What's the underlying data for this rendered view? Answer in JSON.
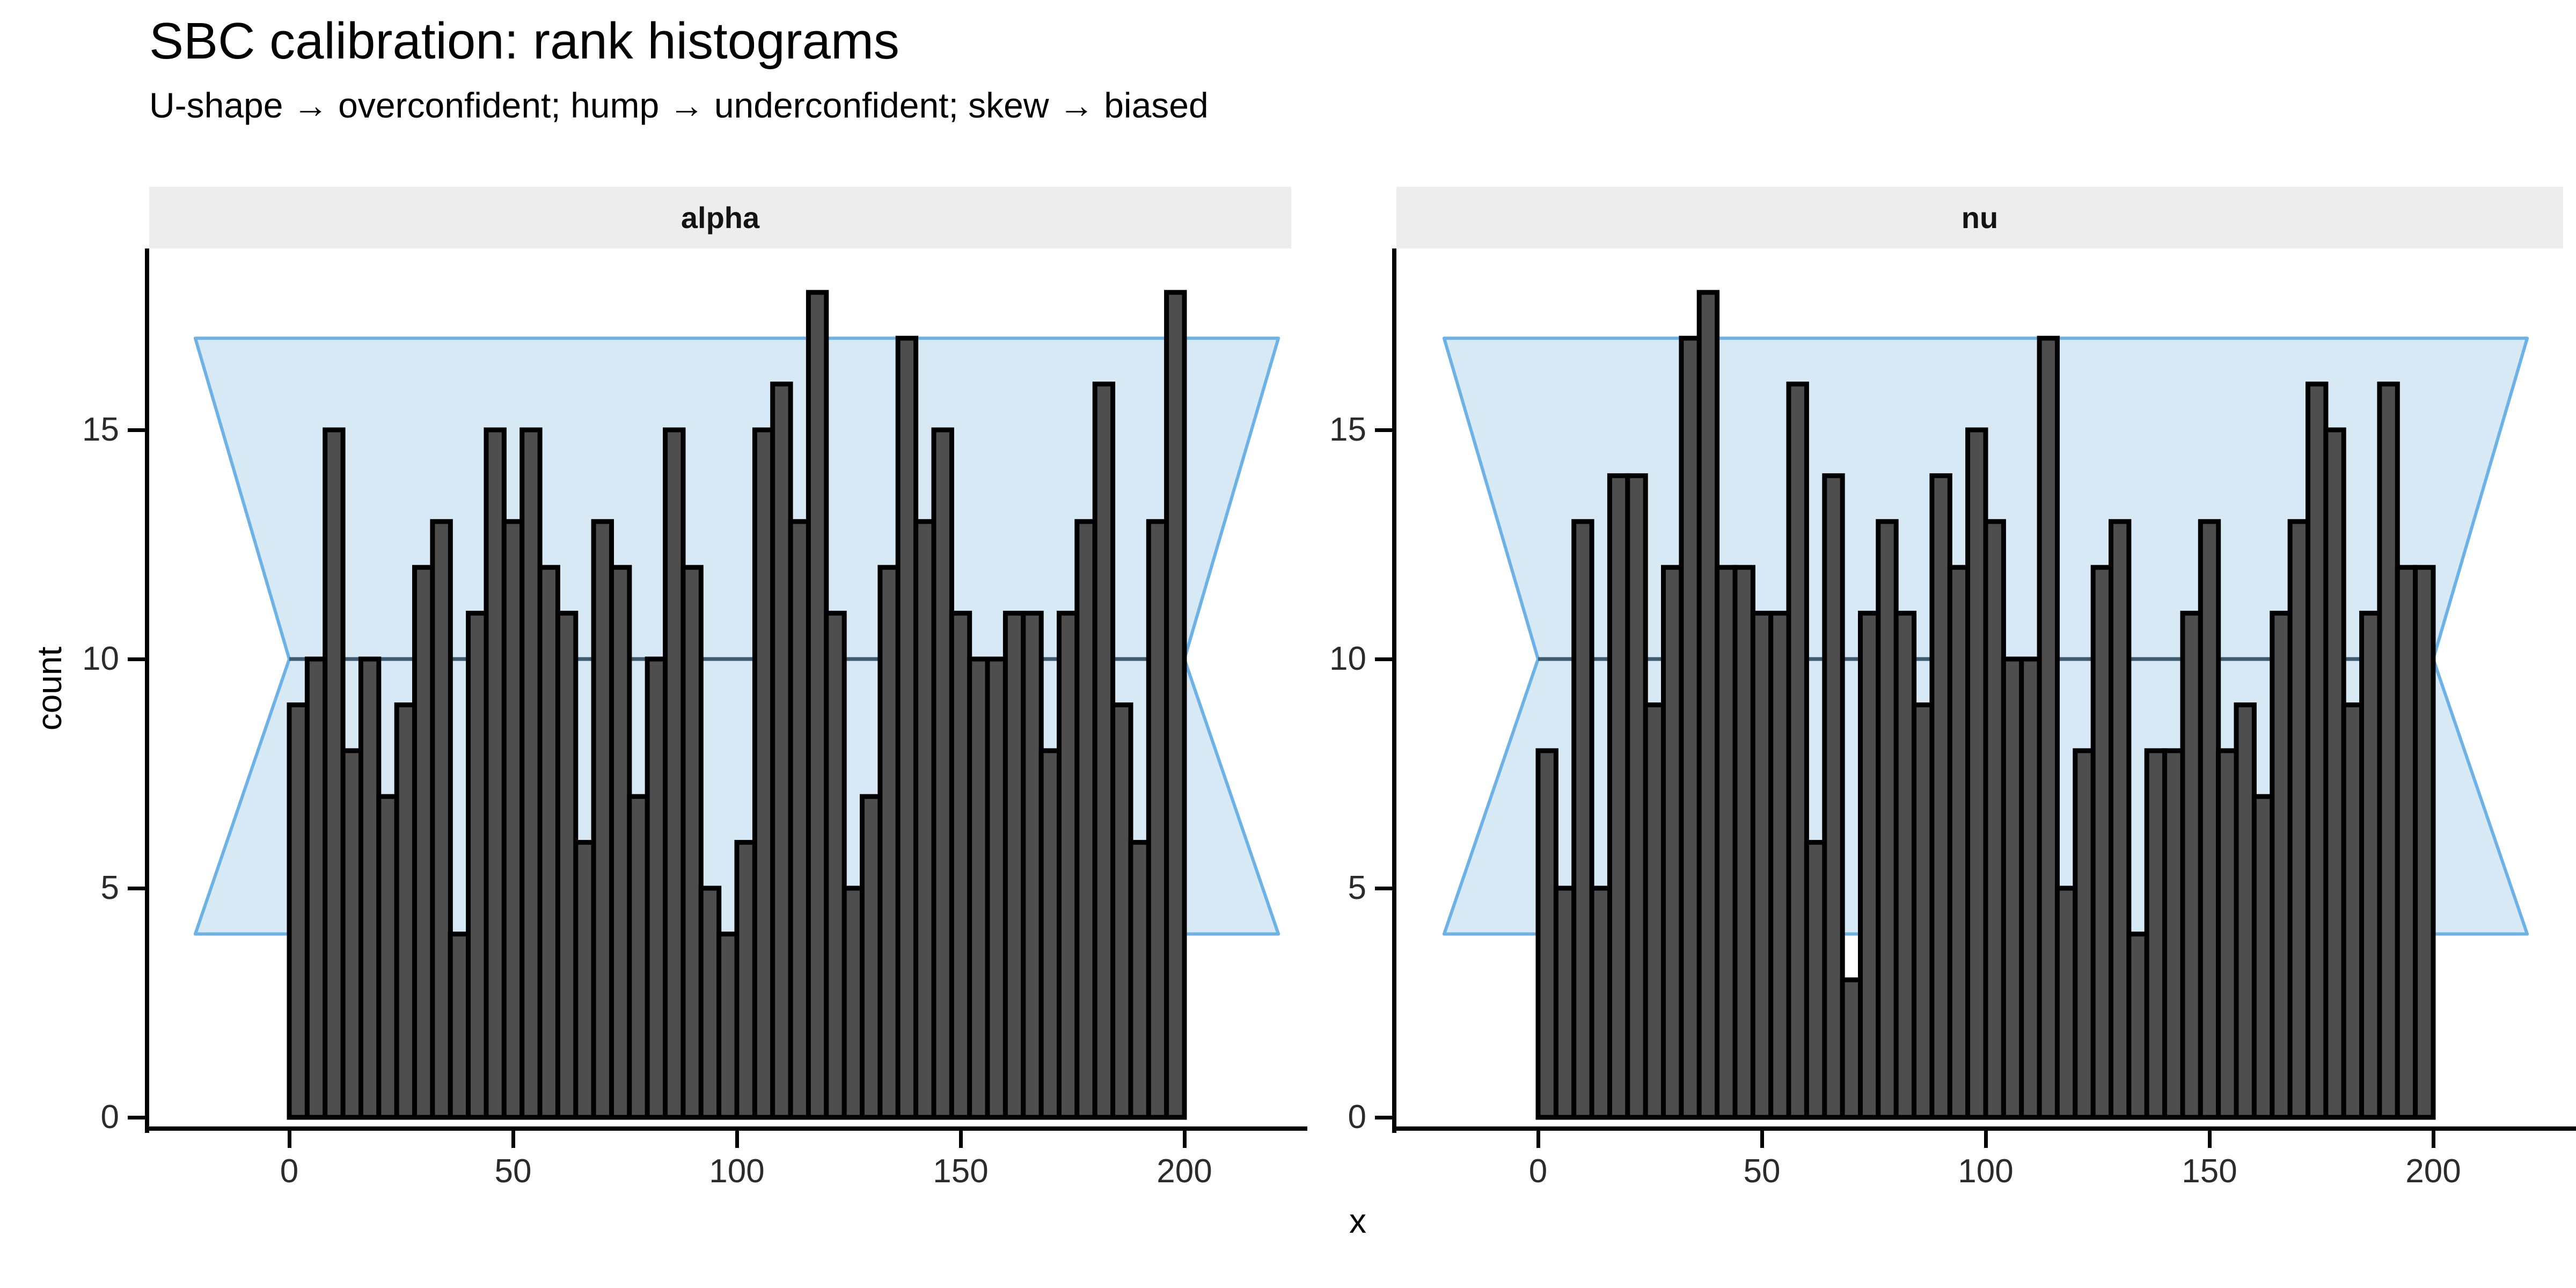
{
  "title": "SBC calibration: rank histograms",
  "subtitle": "U-shape → overconfident; hump → underconfident; skew → biased",
  "colors": {
    "background": "#ffffff",
    "strip_bg": "#ededed",
    "strip_text": "#141414",
    "bar_fill": "#4e4e4e",
    "bar_stroke": "#000000",
    "band_fill": "#d8e9f6",
    "band_stroke": "#6cb2e6",
    "mean_line": "#3e5b6f",
    "axis_line": "#000000",
    "tick_text": "#2b2b2b"
  },
  "chart_data": {
    "type": "bar",
    "title": "SBC calibration: rank histograms",
    "subtitle": "U-shape → overconfident; hump → underconfident; skew → biased",
    "xlabel": "x",
    "ylabel": "count",
    "x_ticks": [
      0,
      50,
      100,
      150,
      200
    ],
    "y_ticks": [
      0,
      5,
      10,
      15
    ],
    "xlim": [
      -31,
      224
    ],
    "ylim": [
      0,
      18.9
    ],
    "bin_width": 4,
    "x_start": 0,
    "x_end": 200,
    "expected_mean": 10,
    "ci_band": {
      "lower": 4,
      "upper": 17,
      "pinch_x": [
        0,
        200
      ],
      "outer_x": [
        -21,
        221
      ]
    },
    "grid": "off",
    "legend": "none",
    "facets": [
      {
        "label": "alpha",
        "counts": [
          9,
          10,
          15,
          8,
          10,
          7,
          9,
          12,
          13,
          4,
          11,
          15,
          13,
          15,
          12,
          11,
          6,
          13,
          12,
          7,
          10,
          15,
          12,
          5,
          4,
          6,
          15,
          16,
          13,
          18,
          11,
          5,
          7,
          12,
          17,
          13,
          15,
          11,
          10,
          10,
          11,
          11,
          8,
          11,
          13,
          16,
          9,
          6,
          13,
          18
        ]
      },
      {
        "label": "nu",
        "counts": [
          8,
          5,
          13,
          5,
          14,
          14,
          9,
          12,
          17,
          18,
          12,
          12,
          11,
          11,
          16,
          6,
          14,
          3,
          11,
          13,
          11,
          9,
          14,
          12,
          15,
          13,
          10,
          10,
          17,
          5,
          8,
          12,
          13,
          4,
          8,
          8,
          11,
          13,
          8,
          9,
          7,
          11,
          13,
          16,
          15,
          9,
          11,
          16,
          12,
          12
        ]
      }
    ]
  }
}
